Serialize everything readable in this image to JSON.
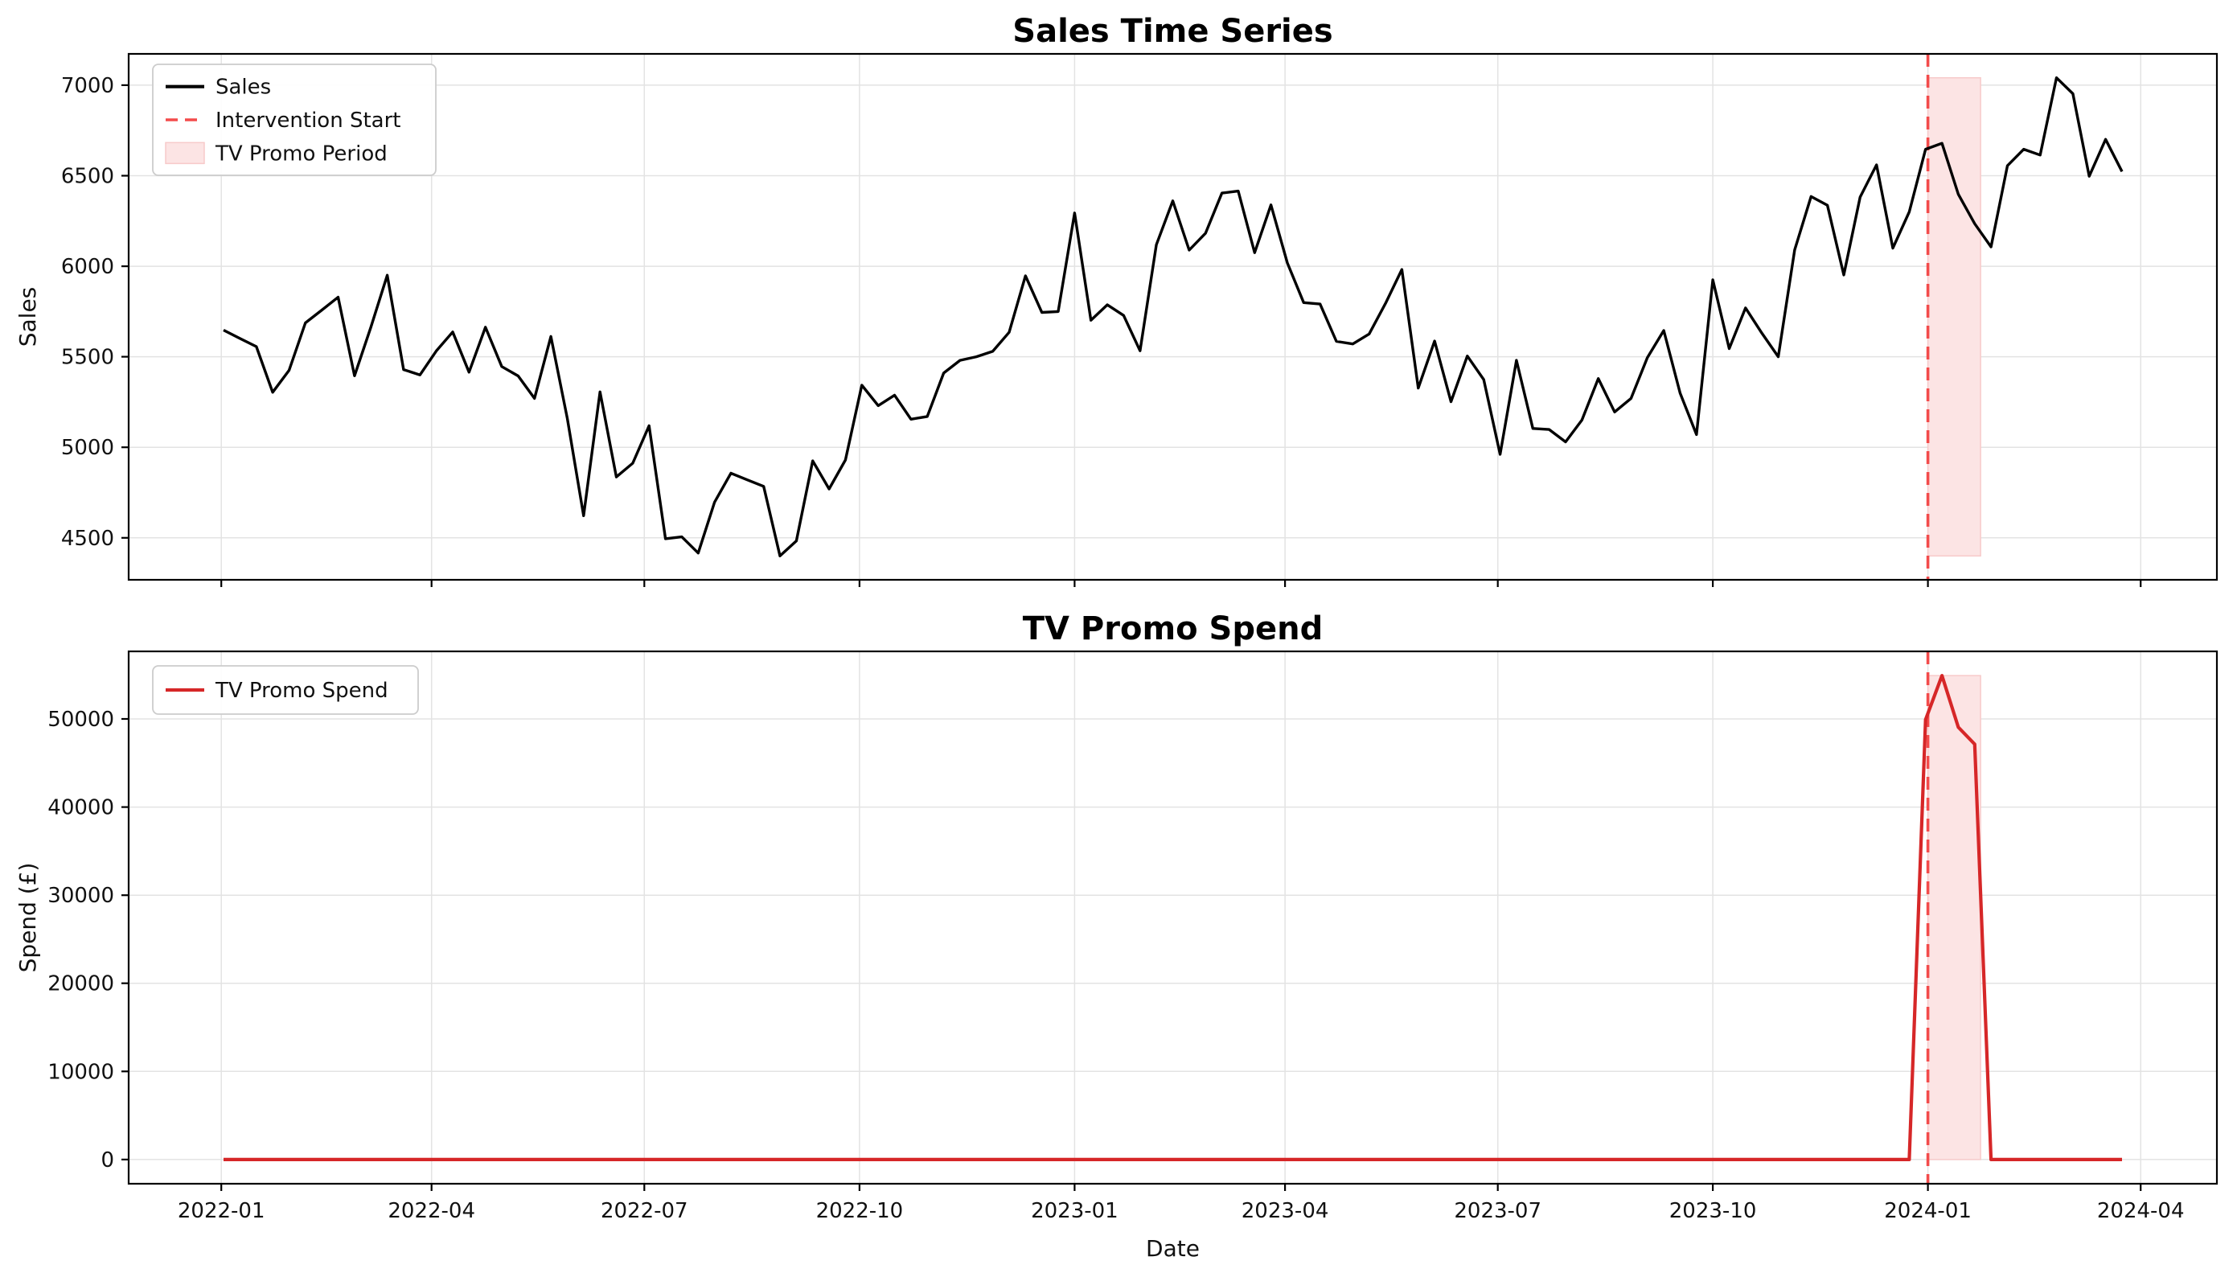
{
  "style": {
    "background": "#ffffff",
    "grid_color": "#e3e3e3",
    "spine_color": "#000000",
    "text_color": "#111111",
    "intervention_color": "#f34b4b",
    "band_fill": "#fce4e4",
    "band_edge": "#f7caca",
    "legend_border": "#cccccc"
  },
  "chart_data": [
    {
      "type": "line",
      "title": "Sales Time Series",
      "ylabel": "Sales",
      "xlabel": "",
      "x_description": "weekly sales observations, Jan 2022 through late Mar 2024",
      "xlim": [
        -5.8,
        121.8
      ],
      "ylim": [
        4268,
        7173
      ],
      "grid": true,
      "legend_position": "upper-left",
      "legend": [
        {
          "label": "Sales",
          "style": "line",
          "color": "#000000"
        },
        {
          "label": "Intervention Start",
          "style": "dashed",
          "color": "#f34b4b"
        },
        {
          "label": "TV Promo Period",
          "style": "patch",
          "color": "#fce4e4"
        }
      ],
      "xticks": [
        {
          "week": -0.14,
          "label": "2022-01"
        },
        {
          "week": 12.71,
          "label": "2022-04"
        },
        {
          "week": 25.71,
          "label": "2022-07"
        },
        {
          "week": 38.86,
          "label": "2022-10"
        },
        {
          "week": 52.0,
          "label": "2023-01"
        },
        {
          "week": 64.86,
          "label": "2023-04"
        },
        {
          "week": 77.86,
          "label": "2023-07"
        },
        {
          "week": 91.0,
          "label": "2023-10"
        },
        {
          "week": 104.14,
          "label": "2024-01"
        },
        {
          "week": 117.14,
          "label": "2024-04"
        }
      ],
      "yticks": [
        {
          "value": 4500,
          "label": "4500"
        },
        {
          "value": 5000,
          "label": "5000"
        },
        {
          "value": 5500,
          "label": "5500"
        },
        {
          "value": 6000,
          "label": "6000"
        },
        {
          "value": 6500,
          "label": "6500"
        },
        {
          "value": 7000,
          "label": "7000"
        }
      ],
      "intervention_week": 104.14,
      "promo_band": {
        "x0": 104.14,
        "x1": 107.36,
        "y0": 4400,
        "y1": 7041
      },
      "series": [
        {
          "name": "Sales",
          "color": "#000000",
          "width": 3.4,
          "data_name": "sales-line",
          "values": [
            5647,
            5601,
            5556,
            5304,
            5425,
            5687,
            5758,
            5829,
            5395,
            5663,
            5950,
            5429,
            5400,
            5532,
            5637,
            5415,
            5663,
            5446,
            5394,
            5270,
            5612,
            5160,
            4622,
            5306,
            4836,
            4912,
            5119,
            4495,
            4505,
            4416,
            4696,
            4857,
            4820,
            4784,
            4400,
            4483,
            4925,
            4770,
            4930,
            5343,
            5230,
            5288,
            5155,
            5170,
            5410,
            5480,
            5500,
            5530,
            5635,
            5947,
            5745,
            5750,
            6294,
            5702,
            5787,
            5728,
            5533,
            6119,
            6361,
            6089,
            6182,
            6404,
            6415,
            6075,
            6339,
            6018,
            5799,
            5791,
            5585,
            5571,
            5626,
            5795,
            5982,
            5327,
            5587,
            5252,
            5504,
            5374,
            4961,
            5480,
            5104,
            5098,
            5030,
            5150,
            5380,
            5195,
            5270,
            5495,
            5645,
            5300,
            5070,
            5925,
            5545,
            5770,
            5630,
            5500,
            6090,
            6385,
            6337,
            5952,
            6382,
            6560,
            6100,
            6300,
            6646,
            6679,
            6398,
            6235,
            6107,
            6555,
            6646,
            6614,
            7041,
            6953,
            6497,
            6701,
            6523
          ]
        }
      ]
    },
    {
      "type": "line",
      "title": "TV Promo Spend",
      "ylabel": "Spend (£)",
      "xlabel": "Date",
      "x_description": "weekly TV promo spend, zero except a 4-week burst around Jan 2024",
      "xlim": [
        -5.8,
        121.8
      ],
      "ylim": [
        -2746,
        57664
      ],
      "grid": true,
      "legend_position": "upper-left",
      "legend": [
        {
          "label": "TV Promo Spend",
          "style": "line",
          "color": "#d62728"
        }
      ],
      "xticks": [
        {
          "week": -0.14,
          "label": "2022-01"
        },
        {
          "week": 12.71,
          "label": "2022-04"
        },
        {
          "week": 25.71,
          "label": "2022-07"
        },
        {
          "week": 38.86,
          "label": "2022-10"
        },
        {
          "week": 52.0,
          "label": "2023-01"
        },
        {
          "week": 64.86,
          "label": "2023-04"
        },
        {
          "week": 77.86,
          "label": "2023-07"
        },
        {
          "week": 91.0,
          "label": "2023-10"
        },
        {
          "week": 104.14,
          "label": "2024-01"
        },
        {
          "week": 117.14,
          "label": "2024-04"
        }
      ],
      "yticks": [
        {
          "value": 0,
          "label": "0"
        },
        {
          "value": 10000,
          "label": "10000"
        },
        {
          "value": 20000,
          "label": "20000"
        },
        {
          "value": 30000,
          "label": "30000"
        },
        {
          "value": 40000,
          "label": "40000"
        },
        {
          "value": 50000,
          "label": "50000"
        }
      ],
      "intervention_week": 104.14,
      "promo_band": {
        "x0": 104.14,
        "x1": 107.36,
        "y0": 0,
        "y1": 54918
      },
      "series": [
        {
          "name": "TV Promo Spend",
          "color": "#d62728",
          "width": 4.2,
          "data_name": "tv-promo-spend-line",
          "values": [
            0,
            0,
            0,
            0,
            0,
            0,
            0,
            0,
            0,
            0,
            0,
            0,
            0,
            0,
            0,
            0,
            0,
            0,
            0,
            0,
            0,
            0,
            0,
            0,
            0,
            0,
            0,
            0,
            0,
            0,
            0,
            0,
            0,
            0,
            0,
            0,
            0,
            0,
            0,
            0,
            0,
            0,
            0,
            0,
            0,
            0,
            0,
            0,
            0,
            0,
            0,
            0,
            0,
            0,
            0,
            0,
            0,
            0,
            0,
            0,
            0,
            0,
            0,
            0,
            0,
            0,
            0,
            0,
            0,
            0,
            0,
            0,
            0,
            0,
            0,
            0,
            0,
            0,
            0,
            0,
            0,
            0,
            0,
            0,
            0,
            0,
            0,
            0,
            0,
            0,
            0,
            0,
            0,
            0,
            0,
            0,
            0,
            0,
            0,
            0,
            0,
            0,
            0,
            0,
            49920,
            54918,
            49057,
            47131,
            0,
            0,
            0,
            0,
            0,
            0,
            0,
            0,
            0
          ]
        }
      ]
    }
  ]
}
